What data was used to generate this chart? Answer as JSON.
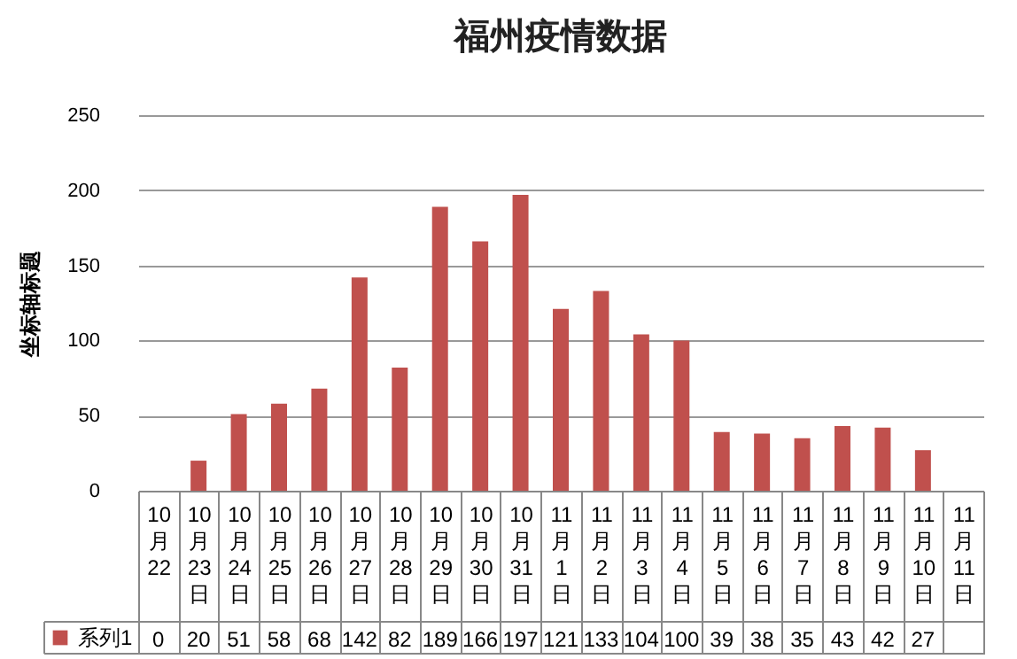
{
  "chart_data": {
    "type": "bar",
    "title": "福州疫情数据",
    "ylabel": "坐标轴标题",
    "categories": [
      "10月22",
      "10月23日",
      "10月24日",
      "10月25日",
      "10月26日",
      "10月27日",
      "10月28日",
      "10月29日",
      "10月30日",
      "10月31日",
      "11月1日",
      "11月2日",
      "11月3日",
      "11月4日",
      "11月5日",
      "11月6日",
      "11月7日",
      "11月8日",
      "11月9日",
      "11月10日",
      "11月11日"
    ],
    "series": [
      {
        "name": "系列1",
        "color": "#c0504d",
        "values": [
          0,
          20,
          51,
          58,
          68,
          142,
          82,
          189,
          166,
          197,
          121,
          133,
          104,
          100,
          39,
          38,
          35,
          43,
          42,
          27,
          null
        ]
      }
    ],
    "ylim": [
      0,
      250
    ],
    "yticks": [
      0,
      50,
      100,
      150,
      200,
      250
    ],
    "grid": "y",
    "legend": "bottom left",
    "data_labels": true
  }
}
